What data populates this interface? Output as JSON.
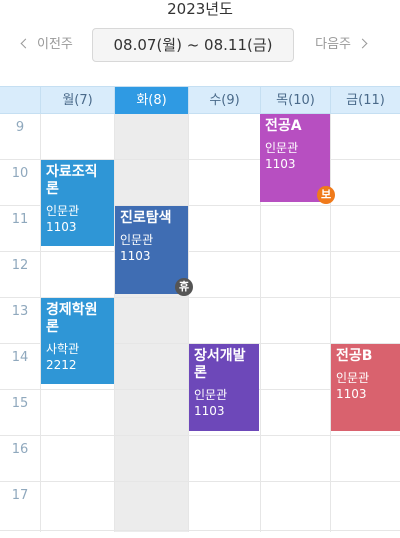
{
  "year_label": "2023년도",
  "nav": {
    "prev_label": "이전주",
    "next_label": "다음주",
    "range_label": "08.07(월) ~ 08.11(금)"
  },
  "days": [
    {
      "label": "월(7)",
      "active": false
    },
    {
      "label": "화(8)",
      "active": true
    },
    {
      "label": "수(9)",
      "active": false
    },
    {
      "label": "목(10)",
      "active": false
    },
    {
      "label": "금(11)",
      "active": false
    }
  ],
  "hours": [
    "9",
    "10",
    "11",
    "12",
    "13",
    "14",
    "15",
    "16",
    "17"
  ],
  "colors": {
    "header_bg": "#d9ecfb",
    "active_day": "#2f9ae3",
    "tuesday_column": "#ececec"
  },
  "events": [
    {
      "title": "전공A",
      "room": "인문관",
      "number": "1103",
      "color": "#b74fc1",
      "badge": "보",
      "badge_color": "#f07a1a"
    },
    {
      "title": "자료조직론",
      "room": "인문관",
      "number": "1103",
      "color": "#2f96d6",
      "badge": "",
      "badge_color": ""
    },
    {
      "title": "진로탐색",
      "room": "인문관",
      "number": "1103",
      "color": "#3f6db3",
      "badge": "휴",
      "badge_color": "#555555"
    },
    {
      "title": "경제학원론",
      "room": "사학관",
      "number": "2212",
      "color": "#2f96d6",
      "badge": "",
      "badge_color": ""
    },
    {
      "title": "장서개발론",
      "room": "인문관",
      "number": "1103",
      "color": "#6d48b9",
      "badge": "",
      "badge_color": ""
    },
    {
      "title": "전공B",
      "room": "인문관",
      "number": "1103",
      "color": "#d9626e",
      "badge": "",
      "badge_color": ""
    }
  ]
}
